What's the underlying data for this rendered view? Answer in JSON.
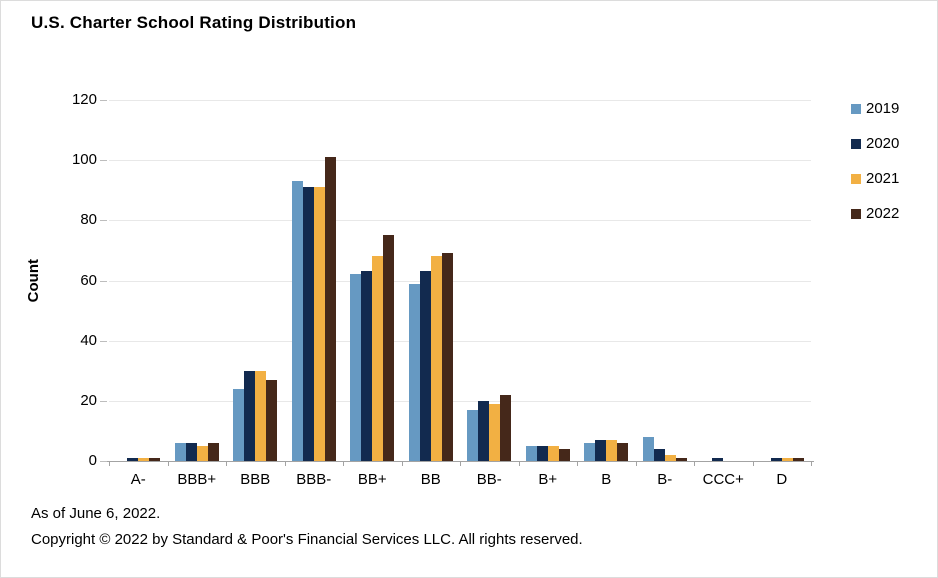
{
  "title": "U.S. Charter School Rating Distribution",
  "footer": {
    "line1": "As of June 6, 2022.",
    "line2": "Copyright © 2022 by Standard & Poor's Financial Services LLC. All rights reserved."
  },
  "axis_colors": {
    "gridline": "#e8e8e8",
    "axis_line": "#a3a3a3"
  },
  "chart_data": {
    "type": "bar",
    "title": "U.S. Charter School Rating Distribution",
    "xlabel": "",
    "ylabel": "Count",
    "ylim": [
      0,
      120
    ],
    "yticks": [
      0,
      20,
      40,
      60,
      80,
      100,
      120
    ],
    "grid": true,
    "legend_position": "right",
    "categories": [
      "A-",
      "BBB+",
      "BBB",
      "BBB-",
      "BB+",
      "BB",
      "BB-",
      "B+",
      "B",
      "B-",
      "CCC+",
      "D"
    ],
    "series": [
      {
        "name": "2019",
        "color": "#6699c2",
        "values": [
          0,
          6,
          24,
          93,
          62,
          59,
          17,
          5,
          6,
          8,
          0,
          0
        ]
      },
      {
        "name": "2020",
        "color": "#122a4f",
        "values": [
          1,
          6,
          30,
          91,
          63,
          63,
          20,
          5,
          7,
          4,
          1,
          1
        ]
      },
      {
        "name": "2021",
        "color": "#f2b043",
        "values": [
          1,
          5,
          30,
          91,
          68,
          68,
          19,
          5,
          7,
          2,
          0,
          1
        ]
      },
      {
        "name": "2022",
        "color": "#45281a",
        "values": [
          1,
          6,
          27,
          101,
          75,
          69,
          22,
          4,
          6,
          1,
          0,
          1
        ]
      }
    ]
  }
}
